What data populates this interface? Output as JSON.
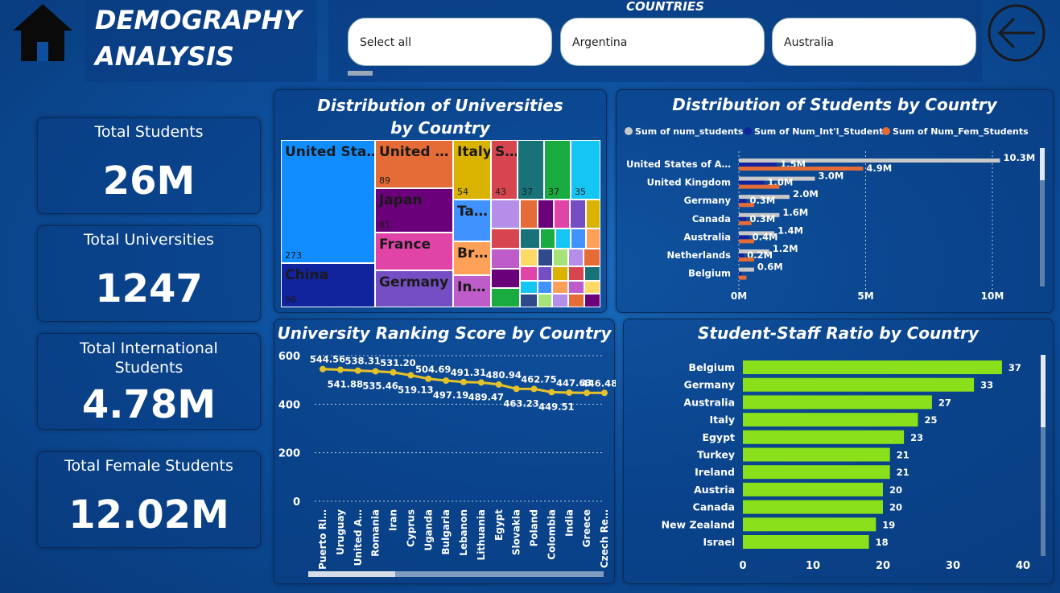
{
  "header": {
    "home_icon": "home-icon",
    "title_line1": "DEMOGRAPHY",
    "title_line2": "ANALYSIS",
    "back_icon": "back-arrow-icon"
  },
  "filters": {
    "label": "COUNTRIES",
    "options": [
      "Select all",
      "Argentina",
      "Australia"
    ]
  },
  "kpis": [
    {
      "label": "Total Students",
      "value": "26M"
    },
    {
      "label": "Total Universities",
      "value": "1247"
    },
    {
      "label": "Total International\nStudents",
      "value": "4.78M"
    },
    {
      "label": "Total Female Students",
      "value": "12.02M"
    }
  ],
  "treemap": {
    "title": "Distribution of Universities by Country",
    "cells": [
      {
        "name": "United Sta…",
        "value": "273",
        "color": "#118dff"
      },
      {
        "name": "China",
        "value": "96",
        "color": "#12239e"
      },
      {
        "name": "United …",
        "value": "89",
        "color": "#e66c37"
      },
      {
        "name": "Japan",
        "value": "81",
        "color": "#6b007b"
      },
      {
        "name": "France",
        "value": "",
        "color": "#e044a7"
      },
      {
        "name": "Germany",
        "value": "",
        "color": "#744ec2"
      },
      {
        "name": "Italy",
        "value": "54",
        "color": "#d9b300"
      },
      {
        "name": "S…",
        "value": "43",
        "color": "#d64550"
      },
      {
        "name": "",
        "value": "37",
        "color": "#197278"
      },
      {
        "name": "",
        "value": "37",
        "color": "#1aab40"
      },
      {
        "name": "",
        "value": "35",
        "color": "#15c6f4"
      },
      {
        "name": "Ta…",
        "value": "",
        "color": "#4092ff"
      },
      {
        "name": "Br…",
        "value": "",
        "color": "#ffa058"
      },
      {
        "name": "In…",
        "value": "",
        "color": "#be5dc9"
      }
    ]
  },
  "students_chart": {
    "title": "Distribution of Students by Country",
    "legend": [
      {
        "label": "Sum of num_students",
        "color": "#c8c8c8"
      },
      {
        "label": "Sum of Num_Int'l_Students",
        "color": "#12239e"
      },
      {
        "label": "Sum of Num_Fem_Students",
        "color": "#e66c37"
      }
    ],
    "x_ticks": [
      "0M",
      "5M",
      "10M"
    ]
  },
  "ranking_chart": {
    "title": "University Ranking Score by Country",
    "y_ticks": [
      "0",
      "200",
      "400",
      "600"
    ]
  },
  "ratio_chart": {
    "title": "Student-Staff Ratio by Country",
    "x_ticks": [
      "0",
      "10",
      "20",
      "30",
      "40"
    ]
  },
  "chart_data": [
    {
      "type": "bar",
      "title": "Distribution of Students by Country",
      "categories": [
        "United States of A…",
        "United Kingdom",
        "Germany",
        "Canada",
        "Australia",
        "Netherlands",
        "Belgium"
      ],
      "series": [
        {
          "name": "Sum of num_students",
          "values": [
            10.3,
            3.0,
            2.0,
            1.6,
            1.4,
            1.2,
            0.6
          ],
          "labels": [
            "10.3M",
            "3.0M",
            "2.0M",
            "1.6M",
            "1.4M",
            "1.2M",
            "0.6M"
          ]
        },
        {
          "name": "Sum of Num_Int'l_Students",
          "values": [
            1.5,
            1.0,
            0.3,
            0.3,
            0.4,
            0.2,
            0.1
          ],
          "labels": [
            "1.5M",
            "1.0M",
            "0.3M",
            "0.3M",
            "0.4M",
            "0.2M",
            ""
          ]
        },
        {
          "name": "Sum of Num_Fem_Students",
          "values": [
            4.9,
            1.6,
            0.6,
            0.5,
            0.6,
            0.6,
            0.3
          ],
          "labels": [
            "4.9M",
            "",
            "",
            "",
            "",
            "",
            ""
          ]
        }
      ],
      "xlim": [
        0,
        11
      ]
    },
    {
      "type": "line",
      "title": "University Ranking Score by Country",
      "categories": [
        "Puerto Ri…",
        "Uruguay",
        "United A…",
        "Romania",
        "Iran",
        "Cyprus",
        "Uganda",
        "Bulgaria",
        "Lebanon",
        "Lithuania",
        "Egypt",
        "Slovakia",
        "Poland",
        "Colombia",
        "India",
        "Greece",
        "Czech Re…"
      ],
      "values": [
        544.56,
        541.88,
        538.31,
        535.46,
        531.2,
        519.13,
        504.69,
        497.19,
        491.31,
        489.47,
        480.94,
        463.23,
        462.75,
        449.51,
        447.63,
        446.48,
        446.48
      ],
      "labels": [
        "544.56",
        "541.88",
        "538.31",
        "535.46",
        "531.20",
        "519.13",
        "504.69",
        "497.19",
        "491.31",
        "489.47",
        "480.94",
        "463.23",
        "462.75",
        "449.51",
        "447.63",
        "",
        "446.48"
      ],
      "ylim": [
        0,
        600
      ],
      "color": "#e6c229"
    },
    {
      "type": "bar",
      "title": "Student-Staff Ratio by Country",
      "categories": [
        "Belgium",
        "Germany",
        "Australia",
        "Italy",
        "Egypt",
        "Turkey",
        "Ireland",
        "Austria",
        "Canada",
        "New Zealand",
        "Israel"
      ],
      "values": [
        37,
        33,
        27,
        25,
        23,
        21,
        21,
        20,
        20,
        19,
        18
      ],
      "xlim": [
        0,
        40
      ],
      "color": "#8ae01a"
    }
  ]
}
